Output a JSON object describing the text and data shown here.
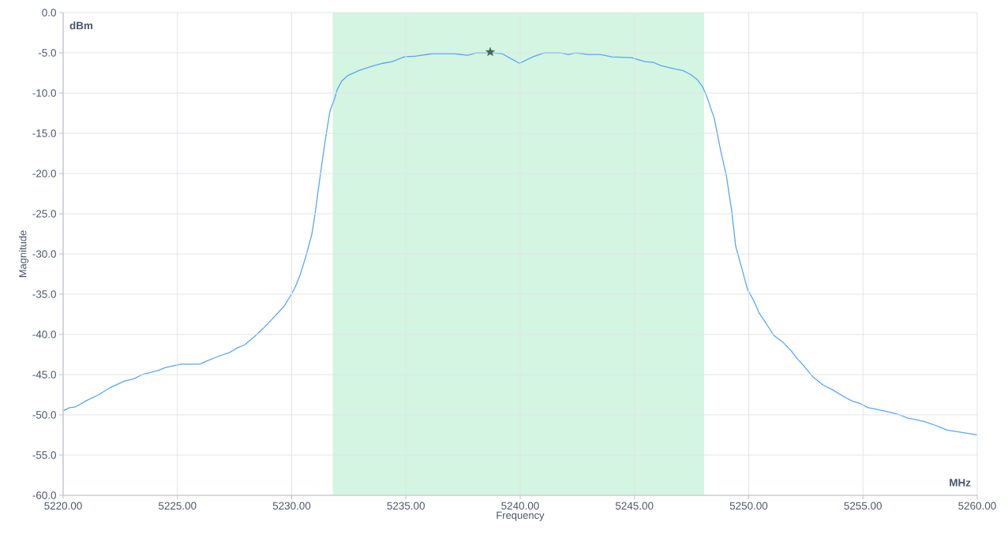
{
  "chart_data": {
    "type": "line",
    "xlabel": "Frequency",
    "ylabel": "Magnitude",
    "annotations": [
      "dBm",
      "MHz"
    ],
    "xlim": [
      5220,
      5260
    ],
    "ylim": [
      -60,
      0
    ],
    "xticks": [
      {
        "value": 5220,
        "label": "5220.00"
      },
      {
        "value": 5225,
        "label": "5225.00"
      },
      {
        "value": 5230,
        "label": "5230.00"
      },
      {
        "value": 5235,
        "label": "5235.00"
      },
      {
        "value": 5240,
        "label": "5240.00"
      },
      {
        "value": 5245,
        "label": "5245.00"
      },
      {
        "value": 5250,
        "label": "5250.00"
      },
      {
        "value": 5255,
        "label": "5255.00"
      },
      {
        "value": 5260,
        "label": "5260.00"
      }
    ],
    "yticks": [
      {
        "value": 0,
        "label": "0.0"
      },
      {
        "value": -5,
        "label": "-5.0"
      },
      {
        "value": -10,
        "label": "-10.0"
      },
      {
        "value": -15,
        "label": "-15.0"
      },
      {
        "value": -20,
        "label": "-20.0"
      },
      {
        "value": -25,
        "label": "-25.0"
      },
      {
        "value": -30,
        "label": "-30.0"
      },
      {
        "value": -35,
        "label": "-35.0"
      },
      {
        "value": -40,
        "label": "-40.0"
      },
      {
        "value": -45,
        "label": "-45.0"
      },
      {
        "value": -50,
        "label": "-50.0"
      },
      {
        "value": -55,
        "label": "-55.0"
      },
      {
        "value": -60,
        "label": "-60.0"
      }
    ],
    "grid": true,
    "bands": [
      {
        "axis": "x",
        "from": 5231.8,
        "to": 5248.05,
        "color": "#d3f5e1"
      }
    ],
    "series": [
      {
        "color": "#5aa5f5",
        "marker": "none",
        "x": [
          5220.0,
          5220.28,
          5220.55,
          5221.04,
          5221.55,
          5222.07,
          5222.69,
          5223.11,
          5223.45,
          5224.15,
          5224.49,
          5225.18,
          5225.98,
          5226.29,
          5226.91,
          5227.25,
          5227.6,
          5227.94,
          5228.36,
          5228.74,
          5229.08,
          5229.67,
          5229.95,
          5230.16,
          5230.36,
          5230.6,
          5230.88,
          5231.02,
          5231.19,
          5231.36,
          5231.54,
          5231.68,
          5231.88,
          5231.99,
          5232.19,
          5232.47,
          5232.95,
          5233.47,
          5233.99,
          5234.4,
          5234.92,
          5235.44,
          5236.17,
          5237.1,
          5237.69,
          5238.1,
          5238.83,
          5239.21,
          5239.52,
          5239.97,
          5240.55,
          5241.07,
          5241.76,
          5242.11,
          5242.45,
          5242.97,
          5243.49,
          5244.01,
          5244.87,
          5245.46,
          5245.84,
          5246.18,
          5246.77,
          5247.12,
          5247.46,
          5247.74,
          5247.98,
          5248.19,
          5248.5,
          5248.77,
          5249.02,
          5249.26,
          5249.43,
          5249.71,
          5249.95,
          5250.22,
          5250.47,
          5250.78,
          5251.09,
          5251.47,
          5251.85,
          5252.12,
          5252.47,
          5252.82,
          5253.26,
          5253.68,
          5254.2,
          5254.54,
          5254.89,
          5255.23,
          5255.92,
          5256.61,
          5256.96,
          5257.65,
          5258.17,
          5258.69,
          5259.14,
          5260.0
        ],
        "values": [
          -49.5,
          -49.1,
          -49.0,
          -48.2,
          -47.5,
          -46.6,
          -45.8,
          -45.5,
          -45.0,
          -44.5,
          -44.1,
          -43.7,
          -43.7,
          -43.3,
          -42.6,
          -42.3,
          -41.7,
          -41.3,
          -40.3,
          -39.3,
          -38.3,
          -36.5,
          -35.2,
          -34.1,
          -32.7,
          -30.5,
          -27.6,
          -25.1,
          -21.5,
          -18.0,
          -14.6,
          -12.2,
          -10.7,
          -9.6,
          -8.5,
          -7.8,
          -7.2,
          -6.7,
          -6.3,
          -6.1,
          -5.5,
          -5.4,
          -5.1,
          -5.1,
          -5.3,
          -5.0,
          -5.0,
          -5.1,
          -5.6,
          -6.3,
          -5.5,
          -5.0,
          -5.0,
          -5.2,
          -5.0,
          -5.2,
          -5.2,
          -5.5,
          -5.6,
          -6.1,
          -6.2,
          -6.6,
          -7.0,
          -7.2,
          -7.7,
          -8.3,
          -9.2,
          -10.6,
          -13.2,
          -17.1,
          -20.2,
          -24.7,
          -29.0,
          -31.9,
          -34.4,
          -35.8,
          -37.4,
          -38.7,
          -40.1,
          -40.9,
          -42.0,
          -43.0,
          -44.1,
          -45.3,
          -46.3,
          -46.9,
          -47.8,
          -48.3,
          -48.6,
          -49.1,
          -49.5,
          -50.0,
          -50.4,
          -50.8,
          -51.3,
          -51.9,
          -52.1,
          -52.5
        ]
      },
      {
        "type": "scatter",
        "color": "#3d6b55",
        "marker": "star",
        "x": [
          5238.69
        ],
        "values": [
          -4.9
        ]
      }
    ]
  }
}
